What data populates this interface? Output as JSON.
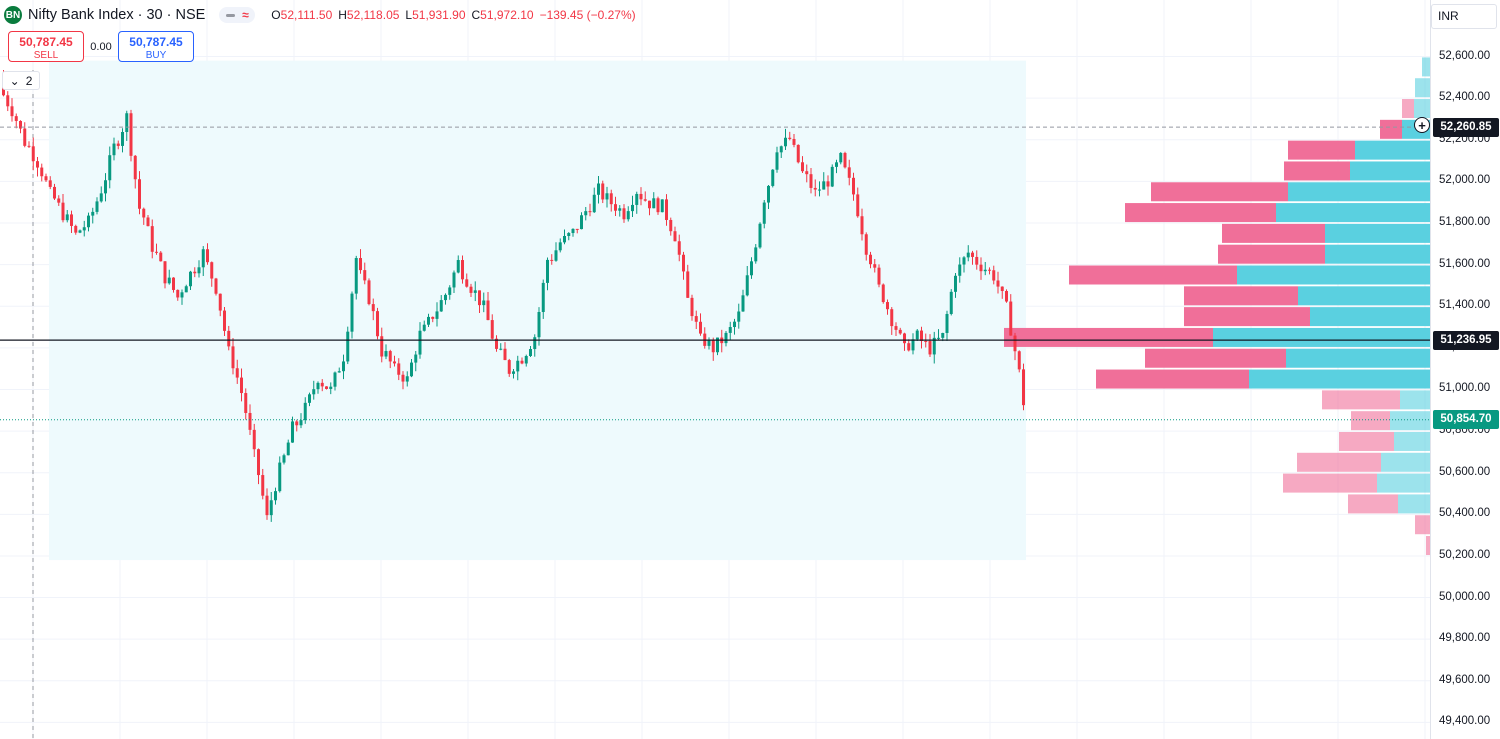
{
  "header": {
    "logo_text": "BN",
    "symbol_title": "Nifty Bank Index · 30 · NSE",
    "ohlc": [
      {
        "key": "O",
        "value": "52,111.50"
      },
      {
        "key": "H",
        "value": "52,118.05"
      },
      {
        "key": "L",
        "value": "51,931.90"
      },
      {
        "key": "C",
        "value": "51,972.10"
      }
    ],
    "change": "−139.45 (−0.27%)"
  },
  "trade": {
    "sell_price": "50,787.45",
    "sell_label": "SELL",
    "spread": "0.00",
    "buy_price": "50,787.45",
    "buy_label": "BUY"
  },
  "indicator_toggle": {
    "count": "2",
    "chevron_icon": "chevron-down-icon"
  },
  "price_axis": {
    "currency": "INR",
    "ticks": [
      "52,600.00",
      "52,400.00",
      "52,200.00",
      "52,000.00",
      "51,800.00",
      "51,600.00",
      "51,400.00",
      "51,200.00",
      "51,000.00",
      "50,800.00",
      "50,600.00",
      "50,400.00",
      "50,200.00",
      "50,000.00",
      "49,800.00",
      "49,600.00",
      "49,400.00"
    ],
    "tick_values": [
      52600,
      52400,
      52200,
      52000,
      51800,
      51600,
      51400,
      51200,
      51000,
      50800,
      50600,
      50400,
      50200,
      50000,
      49800,
      49600,
      49400
    ],
    "tags": [
      {
        "label": "52,260.85",
        "value": 52260.85,
        "color": "#131722",
        "plus_icon": true
      },
      {
        "label": "51,236.95",
        "value": 51236.95,
        "color": "#131722"
      },
      {
        "label": "50,854.70",
        "value": 50854.7,
        "color": "#089981"
      }
    ]
  },
  "colors": {
    "up": "#089981",
    "down": "#f23645",
    "profile_buy": "#5ad0e0",
    "profile_sell": "#f06f99",
    "range_bg": "#eefafd"
  },
  "chart_data": {
    "type": "candlestick",
    "symbol": "Nifty Bank Index",
    "interval": "30",
    "exchange": "NSE",
    "y_range": [
      49400,
      52700
    ],
    "close_series": [
      52450,
      52350,
      52200,
      52100,
      51950,
      51850,
      51750,
      51800,
      51950,
      52150,
      52300,
      51900,
      51700,
      51550,
      51450,
      51550,
      51650,
      51500,
      51200,
      51000,
      50700,
      50400,
      50600,
      50800,
      50900,
      51050,
      51000,
      51150,
      51600,
      51450,
      51200,
      51100,
      51050,
      51250,
      51350,
      51450,
      51600,
      51500,
      51400,
      51200,
      51100,
      51150,
      51250,
      51600,
      51700,
      51750,
      51850,
      51950,
      51900,
      51850,
      51950,
      51900,
      51880,
      51750,
      51450,
      51250,
      51200,
      51250,
      51350,
      51600,
      51900,
      52150,
      52200,
      52050,
      51950,
      52000,
      52100,
      51950,
      51700,
      51500,
      51350,
      51200,
      51250,
      51200,
      51250,
      51550,
      51650,
      51600,
      51550,
      51400,
      51100,
      50650,
      50550,
      50600,
      50480,
      50854
    ],
    "volume_profile": [
      {
        "price": 52550,
        "buy": 8,
        "sell": 0
      },
      {
        "price": 52450,
        "buy": 15,
        "sell": 0
      },
      {
        "price": 52350,
        "buy": 16,
        "sell": 12
      },
      {
        "price": 52250,
        "buy": 28,
        "sell": 22
      },
      {
        "price": 52150,
        "buy": 75,
        "sell": 67
      },
      {
        "price": 52050,
        "buy": 80,
        "sell": 66
      },
      {
        "price": 51950,
        "buy": 142,
        "sell": 137
      },
      {
        "price": 51850,
        "buy": 154,
        "sell": 151
      },
      {
        "price": 51750,
        "buy": 105,
        "sell": 103
      },
      {
        "price": 51650,
        "buy": 105,
        "sell": 107
      },
      {
        "price": 51550,
        "buy": 193,
        "sell": 168
      },
      {
        "price": 51450,
        "buy": 132,
        "sell": 114
      },
      {
        "price": 51350,
        "buy": 120,
        "sell": 126
      },
      {
        "price": 51250,
        "buy": 217,
        "sell": 209
      },
      {
        "price": 51150,
        "buy": 144,
        "sell": 141
      },
      {
        "price": 51050,
        "buy": 181,
        "sell": 153
      },
      {
        "price": 50950,
        "buy": 30,
        "sell": 78
      },
      {
        "price": 50850,
        "buy": 40,
        "sell": 39
      },
      {
        "price": 50750,
        "buy": 36,
        "sell": 55
      },
      {
        "price": 50650,
        "buy": 49,
        "sell": 84
      },
      {
        "price": 50550,
        "buy": 53,
        "sell": 94
      },
      {
        "price": 50450,
        "buy": 32,
        "sell": 50
      },
      {
        "price": 50350,
        "buy": 0,
        "sell": 15
      },
      {
        "price": 50250,
        "buy": 0,
        "sell": 4
      }
    ],
    "horizontal_lines": [
      52260.85,
      51236.95,
      50854.7
    ]
  }
}
